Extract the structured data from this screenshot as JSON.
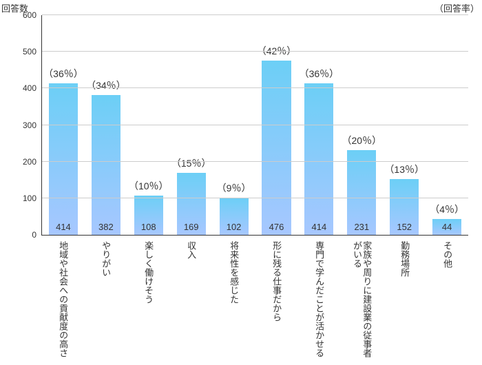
{
  "chart": {
    "type": "bar",
    "y_title": "回答数",
    "right_title": "（回答率）",
    "y_axis": {
      "min": 0,
      "max": 600,
      "ticks": [
        0,
        100,
        200,
        300,
        400,
        500,
        600
      ],
      "tick_fontsize": 12,
      "tick_color": "#333333"
    },
    "grid_color": "#cccccc",
    "axis_color": "#333333",
    "background_color": "#ffffff",
    "bar_gradient_top": "#6ccff6",
    "bar_gradient_bottom": "#a7c7ff",
    "bar_width_ratio": 0.68,
    "value_fontsize": 13,
    "pct_fontsize": 14,
    "xlabel_fontsize": 13,
    "categories": [
      {
        "label": "地域や社会への貢献度の高さ",
        "value": 414,
        "pct": "（36％）"
      },
      {
        "label": "やりがい",
        "value": 382,
        "pct": "（34％）"
      },
      {
        "label": "楽しく働けそう",
        "value": 108,
        "pct": "（10％）"
      },
      {
        "label": "収入",
        "value": 169,
        "pct": "（15％）"
      },
      {
        "label": "将来性を感じた",
        "value": 102,
        "pct": "（9％）"
      },
      {
        "label": "形に残る仕事だから",
        "value": 476,
        "pct": "（42％）"
      },
      {
        "label": "専門で学んだことが活かせる",
        "value": 414,
        "pct": "（36％）"
      },
      {
        "label": "家族や周りに建設業の従事者がいる",
        "value": 231,
        "pct": "（20％）"
      },
      {
        "label": "勤務場所",
        "value": 152,
        "pct": "（13％）"
      },
      {
        "label": "その他",
        "value": 44,
        "pct": "（4％）"
      }
    ]
  }
}
